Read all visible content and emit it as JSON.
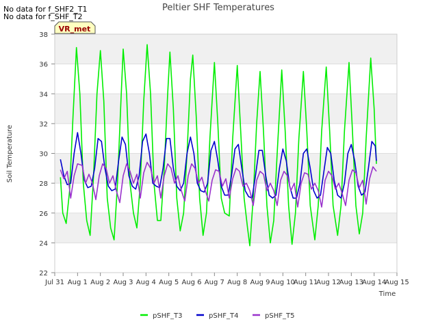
{
  "chart_data": {
    "type": "line",
    "title": "Peltier SHF Temperatures",
    "xlabel": "Time",
    "ylabel": "Soil Temperature",
    "notes": [
      "No data for f_SHF2_T1",
      "No data for f_SHF_T2"
    ],
    "badge": "VR_met",
    "ylim": [
      22,
      38
    ],
    "yticks": [
      22,
      24,
      26,
      28,
      30,
      32,
      34,
      36,
      38
    ],
    "xlim": [
      0,
      15
    ],
    "xticks": [
      {
        "v": 0,
        "label": "Jul 31"
      },
      {
        "v": 1,
        "label": "Aug 1"
      },
      {
        "v": 2,
        "label": "Aug 2"
      },
      {
        "v": 3,
        "label": "Aug 3"
      },
      {
        "v": 4,
        "label": "Aug 4"
      },
      {
        "v": 5,
        "label": "Aug 5"
      },
      {
        "v": 6,
        "label": "Aug 6"
      },
      {
        "v": 7,
        "label": "Aug 7"
      },
      {
        "v": 8,
        "label": "Aug 8"
      },
      {
        "v": 9,
        "label": "Aug 9"
      },
      {
        "v": 10,
        "label": "Aug 10"
      },
      {
        "v": 11,
        "label": "Aug 11"
      },
      {
        "v": 12,
        "label": "Aug 12"
      },
      {
        "v": 13,
        "label": "Aug 13"
      },
      {
        "v": 14,
        "label": "Aug 14"
      },
      {
        "v": 15,
        "label": "Aug 15"
      }
    ],
    "x_unit": "days since Jul 31",
    "series": [
      {
        "name": "pSHF_T3",
        "color": "#00ee00",
        "points": [
          [
            0.25,
            28.4
          ],
          [
            0.35,
            26.0
          ],
          [
            0.5,
            25.3
          ],
          [
            0.65,
            27.5
          ],
          [
            0.8,
            32.5
          ],
          [
            0.95,
            37.1
          ],
          [
            1.1,
            34.0
          ],
          [
            1.25,
            28.0
          ],
          [
            1.4,
            25.5
          ],
          [
            1.55,
            24.5
          ],
          [
            1.7,
            28.5
          ],
          [
            1.85,
            34.0
          ],
          [
            2.0,
            36.9
          ],
          [
            2.15,
            33.5
          ],
          [
            2.3,
            27.0
          ],
          [
            2.45,
            25.0
          ],
          [
            2.6,
            24.2
          ],
          [
            2.75,
            28.0
          ],
          [
            2.9,
            33.5
          ],
          [
            3.0,
            37.0
          ],
          [
            3.15,
            34.0
          ],
          [
            3.3,
            28.0
          ],
          [
            3.45,
            26.0
          ],
          [
            3.6,
            25.0
          ],
          [
            3.75,
            28.0
          ],
          [
            3.9,
            33.5
          ],
          [
            4.05,
            37.3
          ],
          [
            4.2,
            34.0
          ],
          [
            4.35,
            28.0
          ],
          [
            4.5,
            25.5
          ],
          [
            4.65,
            25.5
          ],
          [
            4.8,
            29.0
          ],
          [
            4.95,
            34.0
          ],
          [
            5.05,
            36.8
          ],
          [
            5.2,
            33.0
          ],
          [
            5.35,
            27.0
          ],
          [
            5.5,
            24.8
          ],
          [
            5.65,
            26.0
          ],
          [
            5.8,
            30.0
          ],
          [
            5.95,
            35.0
          ],
          [
            6.05,
            36.6
          ],
          [
            6.2,
            32.5
          ],
          [
            6.35,
            27.0
          ],
          [
            6.5,
            24.5
          ],
          [
            6.65,
            26.0
          ],
          [
            6.8,
            31.0
          ],
          [
            7.0,
            36.1
          ],
          [
            7.15,
            32.0
          ],
          [
            7.3,
            27.0
          ],
          [
            7.45,
            26.0
          ],
          [
            7.65,
            25.8
          ],
          [
            7.8,
            31.0
          ],
          [
            8.0,
            35.9
          ],
          [
            8.15,
            31.5
          ],
          [
            8.3,
            27.0
          ],
          [
            8.45,
            25.0
          ],
          [
            8.55,
            23.8
          ],
          [
            8.7,
            27.0
          ],
          [
            8.85,
            32.0
          ],
          [
            9.0,
            35.5
          ],
          [
            9.15,
            31.5
          ],
          [
            9.3,
            26.5
          ],
          [
            9.45,
            24.0
          ],
          [
            9.6,
            25.5
          ],
          [
            9.75,
            30.0
          ],
          [
            9.95,
            35.6
          ],
          [
            10.1,
            31.5
          ],
          [
            10.25,
            26.5
          ],
          [
            10.4,
            23.9
          ],
          [
            10.55,
            26.0
          ],
          [
            10.7,
            31.0
          ],
          [
            10.9,
            35.5
          ],
          [
            11.05,
            31.5
          ],
          [
            11.2,
            26.5
          ],
          [
            11.4,
            24.2
          ],
          [
            11.55,
            26.5
          ],
          [
            11.7,
            31.5
          ],
          [
            11.9,
            35.8
          ],
          [
            12.05,
            31.5
          ],
          [
            12.2,
            26.5
          ],
          [
            12.4,
            24.5
          ],
          [
            12.55,
            26.5
          ],
          [
            12.7,
            31.5
          ],
          [
            12.9,
            36.1
          ],
          [
            13.05,
            31.5
          ],
          [
            13.2,
            26.5
          ],
          [
            13.35,
            24.6
          ],
          [
            13.5,
            26.0
          ],
          [
            13.65,
            31.0
          ],
          [
            13.85,
            36.4
          ],
          [
            14.0,
            33.0
          ],
          [
            14.1,
            29.3
          ]
        ]
      },
      {
        "name": "pSHF_T4",
        "color": "#0000cc",
        "points": [
          [
            0.25,
            29.6
          ],
          [
            0.4,
            28.5
          ],
          [
            0.55,
            27.9
          ],
          [
            0.7,
            28.0
          ],
          [
            0.85,
            30.0
          ],
          [
            1.0,
            31.4
          ],
          [
            1.15,
            30.0
          ],
          [
            1.3,
            28.2
          ],
          [
            1.45,
            27.7
          ],
          [
            1.6,
            27.8
          ],
          [
            1.75,
            29.0
          ],
          [
            1.9,
            31.0
          ],
          [
            2.05,
            30.8
          ],
          [
            2.2,
            29.0
          ],
          [
            2.35,
            27.8
          ],
          [
            2.5,
            27.5
          ],
          [
            2.65,
            27.6
          ],
          [
            2.8,
            29.5
          ],
          [
            2.95,
            31.1
          ],
          [
            3.1,
            30.6
          ],
          [
            3.25,
            28.5
          ],
          [
            3.4,
            27.8
          ],
          [
            3.55,
            27.6
          ],
          [
            3.7,
            28.5
          ],
          [
            3.85,
            30.8
          ],
          [
            4.0,
            31.3
          ],
          [
            4.15,
            30.0
          ],
          [
            4.3,
            28.0
          ],
          [
            4.45,
            27.8
          ],
          [
            4.6,
            27.7
          ],
          [
            4.75,
            29.0
          ],
          [
            4.9,
            31.0
          ],
          [
            5.05,
            31.0
          ],
          [
            5.2,
            29.0
          ],
          [
            5.35,
            27.8
          ],
          [
            5.5,
            27.5
          ],
          [
            5.65,
            28.0
          ],
          [
            5.8,
            30.0
          ],
          [
            5.95,
            31.1
          ],
          [
            6.1,
            30.0
          ],
          [
            6.25,
            28.0
          ],
          [
            6.4,
            27.5
          ],
          [
            6.55,
            27.4
          ],
          [
            6.7,
            28.0
          ],
          [
            6.85,
            30.2
          ],
          [
            7.0,
            30.8
          ],
          [
            7.15,
            29.5
          ],
          [
            7.3,
            27.8
          ],
          [
            7.45,
            27.2
          ],
          [
            7.6,
            27.2
          ],
          [
            7.75,
            28.5
          ],
          [
            7.9,
            30.3
          ],
          [
            8.05,
            30.6
          ],
          [
            8.2,
            29.0
          ],
          [
            8.35,
            27.5
          ],
          [
            8.5,
            27.1
          ],
          [
            8.65,
            27.0
          ],
          [
            8.8,
            28.5
          ],
          [
            8.95,
            30.2
          ],
          [
            9.1,
            30.2
          ],
          [
            9.25,
            28.5
          ],
          [
            9.4,
            27.2
          ],
          [
            9.55,
            27.0
          ],
          [
            9.7,
            27.2
          ],
          [
            9.85,
            29.0
          ],
          [
            10.0,
            30.3
          ],
          [
            10.15,
            29.5
          ],
          [
            10.3,
            27.8
          ],
          [
            10.45,
            27.0
          ],
          [
            10.6,
            27.0
          ],
          [
            10.75,
            28.0
          ],
          [
            10.9,
            30.0
          ],
          [
            11.05,
            30.3
          ],
          [
            11.2,
            29.0
          ],
          [
            11.35,
            27.5
          ],
          [
            11.5,
            27.0
          ],
          [
            11.65,
            27.2
          ],
          [
            11.8,
            28.8
          ],
          [
            11.95,
            30.4
          ],
          [
            12.1,
            30.0
          ],
          [
            12.25,
            28.2
          ],
          [
            12.4,
            27.2
          ],
          [
            12.55,
            27.0
          ],
          [
            12.7,
            28.0
          ],
          [
            12.85,
            30.0
          ],
          [
            13.0,
            30.6
          ],
          [
            13.15,
            29.5
          ],
          [
            13.3,
            27.8
          ],
          [
            13.45,
            27.2
          ],
          [
            13.6,
            27.4
          ],
          [
            13.75,
            29.0
          ],
          [
            13.9,
            30.8
          ],
          [
            14.05,
            30.5
          ],
          [
            14.1,
            29.5
          ]
        ]
      },
      {
        "name": "pSHF_T5",
        "color": "#9932cc",
        "points": [
          [
            0.25,
            28.9
          ],
          [
            0.4,
            28.3
          ],
          [
            0.55,
            28.8
          ],
          [
            0.7,
            27.0
          ],
          [
            0.85,
            28.5
          ],
          [
            1.0,
            29.3
          ],
          [
            1.2,
            29.2
          ],
          [
            1.35,
            28.0
          ],
          [
            1.5,
            28.6
          ],
          [
            1.65,
            28.0
          ],
          [
            1.8,
            26.9
          ],
          [
            1.95,
            28.5
          ],
          [
            2.1,
            29.3
          ],
          [
            2.25,
            29.0
          ],
          [
            2.4,
            28.0
          ],
          [
            2.55,
            28.5
          ],
          [
            2.7,
            27.5
          ],
          [
            2.85,
            26.7
          ],
          [
            3.0,
            28.5
          ],
          [
            3.15,
            29.3
          ],
          [
            3.3,
            28.8
          ],
          [
            3.45,
            28.0
          ],
          [
            3.6,
            28.6
          ],
          [
            3.75,
            27.0
          ],
          [
            3.9,
            28.7
          ],
          [
            4.05,
            29.4
          ],
          [
            4.2,
            29.0
          ],
          [
            4.35,
            28.0
          ],
          [
            4.5,
            28.5
          ],
          [
            4.65,
            27.0
          ],
          [
            4.8,
            28.5
          ],
          [
            4.95,
            29.3
          ],
          [
            5.1,
            29.0
          ],
          [
            5.25,
            28.0
          ],
          [
            5.4,
            28.5
          ],
          [
            5.55,
            27.5
          ],
          [
            5.7,
            26.8
          ],
          [
            5.85,
            28.5
          ],
          [
            6.0,
            29.3
          ],
          [
            6.15,
            29.0
          ],
          [
            6.3,
            28.0
          ],
          [
            6.45,
            28.4
          ],
          [
            6.6,
            27.5
          ],
          [
            6.75,
            26.8
          ],
          [
            6.9,
            28.2
          ],
          [
            7.05,
            28.9
          ],
          [
            7.2,
            28.8
          ],
          [
            7.35,
            27.8
          ],
          [
            7.5,
            28.3
          ],
          [
            7.65,
            27.0
          ],
          [
            7.8,
            28.3
          ],
          [
            7.95,
            29.0
          ],
          [
            8.1,
            28.8
          ],
          [
            8.25,
            27.8
          ],
          [
            8.4,
            28.0
          ],
          [
            8.55,
            27.5
          ],
          [
            8.7,
            26.5
          ],
          [
            8.85,
            28.2
          ],
          [
            9.0,
            28.8
          ],
          [
            9.15,
            28.6
          ],
          [
            9.3,
            27.5
          ],
          [
            9.45,
            28.0
          ],
          [
            9.6,
            27.5
          ],
          [
            9.75,
            26.5
          ],
          [
            9.9,
            28.2
          ],
          [
            10.05,
            28.8
          ],
          [
            10.2,
            28.5
          ],
          [
            10.35,
            27.5
          ],
          [
            10.5,
            28.0
          ],
          [
            10.65,
            26.4
          ],
          [
            10.8,
            28.0
          ],
          [
            10.95,
            28.7
          ],
          [
            11.1,
            28.6
          ],
          [
            11.25,
            27.6
          ],
          [
            11.4,
            28.0
          ],
          [
            11.55,
            27.5
          ],
          [
            11.7,
            26.4
          ],
          [
            11.85,
            28.2
          ],
          [
            12.0,
            28.8
          ],
          [
            12.15,
            28.5
          ],
          [
            12.3,
            27.6
          ],
          [
            12.45,
            28.0
          ],
          [
            12.6,
            27.3
          ],
          [
            12.75,
            26.5
          ],
          [
            12.9,
            28.2
          ],
          [
            13.05,
            28.9
          ],
          [
            13.2,
            28.7
          ],
          [
            13.35,
            27.7
          ],
          [
            13.5,
            28.2
          ],
          [
            13.65,
            26.6
          ],
          [
            13.8,
            28.3
          ],
          [
            13.95,
            29.1
          ],
          [
            14.1,
            28.8
          ]
        ]
      }
    ],
    "legend": {
      "placement": "bottom"
    }
  }
}
